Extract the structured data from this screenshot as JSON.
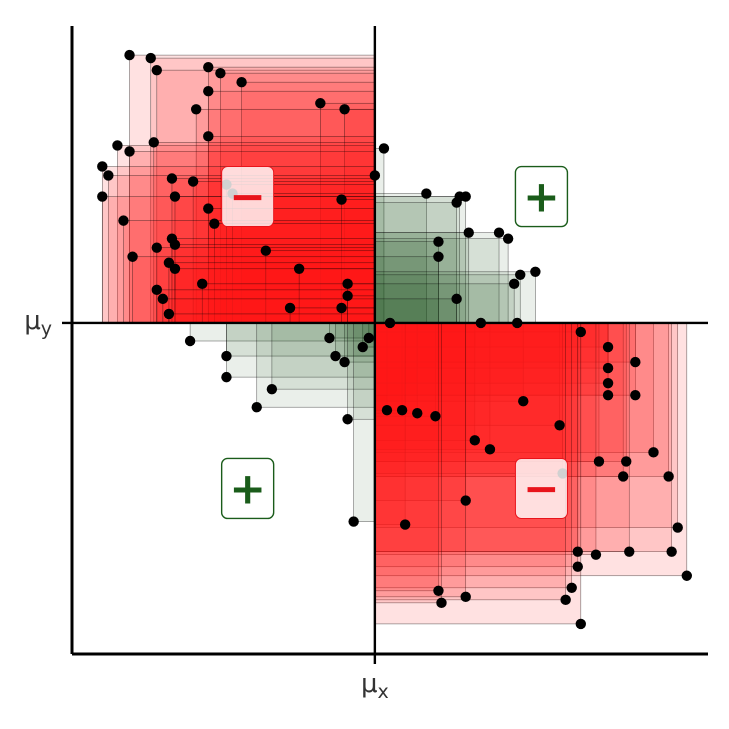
{
  "chart_data": {
    "type": "scatter",
    "title": "",
    "xlabel": "",
    "ylabel": "",
    "x_tick_label": "μx",
    "y_tick_label": "μy",
    "mean": {
      "x": 0,
      "y": 0
    },
    "xlim": [
      -10,
      11
    ],
    "ylim": [
      -11,
      10
    ],
    "grid": false,
    "legend": "none",
    "colors": {
      "negative_fill": "#ff1a1a",
      "positive_fill": "#1b4d1b",
      "point": "#000000",
      "badge_border": "#1a5c1a",
      "positive_sign": "#1a5c1a",
      "negative_sign": "#e8141b",
      "axis": "#000000"
    },
    "quadrant_badges": [
      {
        "quadrant": "upper-left",
        "sign": "−",
        "x": -4.2,
        "y": 4.2,
        "type": "negative"
      },
      {
        "quadrant": "upper-right",
        "sign": "+",
        "x": 5.5,
        "y": 4.2,
        "type": "positive"
      },
      {
        "quadrant": "lower-left",
        "sign": "+",
        "x": -4.2,
        "y": -5.5,
        "type": "positive"
      },
      {
        "quadrant": "lower-right",
        "sign": "−",
        "x": 5.5,
        "y": -5.5,
        "type": "negative"
      }
    ],
    "points": [
      [
        -8.1,
        8.9
      ],
      [
        -7.4,
        8.8
      ],
      [
        -7.2,
        8.4
      ],
      [
        -5.5,
        8.5
      ],
      [
        -5.1,
        8.3
      ],
      [
        -4.4,
        8.0
      ],
      [
        -5.5,
        7.7
      ],
      [
        -5.9,
        7.1
      ],
      [
        -1.8,
        7.3
      ],
      [
        -1.0,
        7.1
      ],
      [
        -5.5,
        6.2
      ],
      [
        -8.5,
        5.9
      ],
      [
        -8.1,
        5.7
      ],
      [
        -7.3,
        6.0
      ],
      [
        -9.0,
        5.2
      ],
      [
        -8.8,
        4.9
      ],
      [
        -6.7,
        4.8
      ],
      [
        -6.0,
        4.7
      ],
      [
        -4.9,
        4.6
      ],
      [
        -4.7,
        4.3
      ],
      [
        -6.6,
        4.2
      ],
      [
        -9.0,
        4.2
      ],
      [
        -1.1,
        4.1
      ],
      [
        -5.5,
        3.8
      ],
      [
        -8.3,
        3.4
      ],
      [
        -5.3,
        3.3
      ],
      [
        -6.7,
        2.8
      ],
      [
        -6.6,
        2.6
      ],
      [
        -7.2,
        2.5
      ],
      [
        -3.6,
        2.4
      ],
      [
        -8.0,
        2.2
      ],
      [
        -6.8,
        2.0
      ],
      [
        -6.6,
        1.8
      ],
      [
        -2.5,
        1.8
      ],
      [
        -5.7,
        1.3
      ],
      [
        -7.2,
        1.1
      ],
      [
        -0.9,
        1.3
      ],
      [
        -7.0,
        0.8
      ],
      [
        -2.8,
        0.5
      ],
      [
        -1.1,
        0.5
      ],
      [
        -6.8,
        0.3
      ],
      [
        -0.9,
        0.9
      ],
      [
        0.3,
        5.8
      ],
      [
        0.0,
        4.9
      ],
      [
        1.7,
        4.3
      ],
      [
        2.8,
        4.2
      ],
      [
        3.0,
        4.2
      ],
      [
        2.7,
        4.0
      ],
      [
        4.1,
        3.0
      ],
      [
        4.4,
        2.8
      ],
      [
        2.1,
        2.7
      ],
      [
        3.1,
        3.0
      ],
      [
        2.1,
        2.2
      ],
      [
        4.8,
        1.6
      ],
      [
        5.3,
        1.7
      ],
      [
        4.6,
        1.3
      ],
      [
        2.7,
        0.8
      ],
      [
        0.5,
        0.0
      ],
      [
        3.5,
        0.0
      ],
      [
        4.7,
        0.0
      ],
      [
        -6.1,
        -0.6
      ],
      [
        -0.2,
        -0.5
      ],
      [
        -1.5,
        -0.5
      ],
      [
        -0.4,
        -0.8
      ],
      [
        -4.9,
        -1.1
      ],
      [
        -1.3,
        -1.1
      ],
      [
        -1.0,
        -1.3
      ],
      [
        -4.9,
        -1.8
      ],
      [
        -3.4,
        -2.2
      ],
      [
        -3.9,
        -2.8
      ],
      [
        -0.9,
        -3.2
      ],
      [
        -0.7,
        -6.6
      ],
      [
        0.4,
        -2.9
      ],
      [
        0.9,
        -2.9
      ],
      [
        1.4,
        -3.0
      ],
      [
        2.0,
        -3.1
      ],
      [
        4.9,
        -2.6
      ],
      [
        6.1,
        -3.4
      ],
      [
        3.3,
        -3.9
      ],
      [
        3.8,
        -4.2
      ],
      [
        6.8,
        -0.3
      ],
      [
        7.7,
        -0.8
      ],
      [
        7.7,
        -1.5
      ],
      [
        8.6,
        -1.3
      ],
      [
        7.7,
        -2.0
      ],
      [
        8.6,
        -2.4
      ],
      [
        7.7,
        -2.4
      ],
      [
        9.2,
        -4.3
      ],
      [
        7.4,
        -4.6
      ],
      [
        8.3,
        -4.6
      ],
      [
        8.2,
        -5.1
      ],
      [
        9.7,
        -5.1
      ],
      [
        6.2,
        -5.0
      ],
      [
        3.0,
        -5.9
      ],
      [
        1.0,
        -6.7
      ],
      [
        10.0,
        -6.8
      ],
      [
        6.7,
        -7.6
      ],
      [
        7.3,
        -7.7
      ],
      [
        8.4,
        -7.6
      ],
      [
        9.8,
        -7.6
      ],
      [
        6.7,
        -8.1
      ],
      [
        10.3,
        -8.4
      ],
      [
        6.5,
        -8.8
      ],
      [
        6.3,
        -9.2
      ],
      [
        2.1,
        -8.9
      ],
      [
        3.0,
        -9.1
      ],
      [
        2.2,
        -9.3
      ],
      [
        6.8,
        -10.0
      ]
    ]
  }
}
